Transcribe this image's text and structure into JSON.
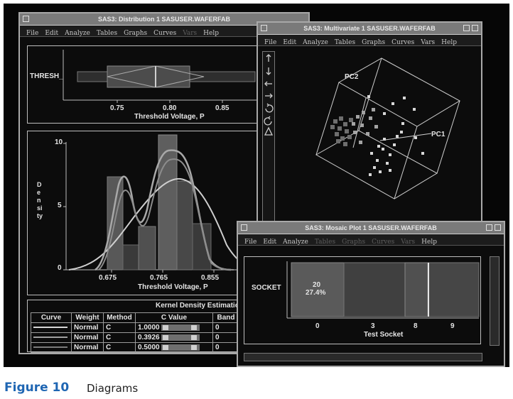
{
  "dist_window": {
    "title": "SAS3: Distribution 1 SASUSER.WAFERFAB",
    "menu": [
      "File",
      "Edit",
      "Analyze",
      "Tables",
      "Graphs",
      "Curves",
      "Vars",
      "Help"
    ],
    "boxplot": {
      "variable_label": "THRESH_",
      "xticks": [
        "0.75",
        "0.80",
        "0.85"
      ],
      "xlabel": "Threshold Voltage, P"
    },
    "histogram": {
      "ylabel": "Density",
      "yticks": [
        "10",
        "5",
        "0"
      ],
      "xticks": [
        "0.675",
        "0.765",
        "0.855"
      ],
      "xlabel": "Threshold Voltage, P"
    },
    "kde_table": {
      "title": "Kernel Density Estimation",
      "headers": [
        "Curve",
        "Weight",
        "Method",
        "C Value",
        "Band"
      ],
      "rows": [
        {
          "weight": "Normal",
          "method": "C",
          "c_value": "1.0000",
          "band": "0"
        },
        {
          "weight": "Normal",
          "method": "C",
          "c_value": "0.3926",
          "band": "0"
        },
        {
          "weight": "Normal",
          "method": "C",
          "c_value": "0.5000",
          "band": "0"
        }
      ]
    }
  },
  "multi_window": {
    "title": "SAS3: Multivariate 1 SASUSER.WAFERFAB",
    "menu": [
      "File",
      "Edit",
      "Analyze",
      "Tables",
      "Graphs",
      "Curves",
      "Vars",
      "Help"
    ],
    "axis_labels": {
      "pc1": "PC1",
      "pc2": "PC2"
    },
    "tool_icons": [
      "up-arrow-icon",
      "down-arrow-icon",
      "left-arrow-icon",
      "right-arrow-icon",
      "rotate-icon",
      "rotate-reverse-icon",
      "triangle-icon"
    ]
  },
  "mosaic_window": {
    "title": "SAS3: Mosaic Plot 1 SASUSER.WAFERFAB",
    "menu": [
      "File",
      "Edit",
      "Analyze",
      "Tables",
      "Graphs",
      "Curves",
      "Vars",
      "Help"
    ],
    "menu_enabled": [
      true,
      true,
      true,
      false,
      false,
      false,
      false,
      true
    ],
    "ylabel": "SOCKET",
    "cell_count": "20",
    "cell_percent": "27.4%",
    "categories": [
      "0",
      "3",
      "8",
      "9"
    ],
    "xlabel": "Test Socket"
  },
  "caption": {
    "figure": "Figure 10",
    "text": "Diagrams"
  }
}
